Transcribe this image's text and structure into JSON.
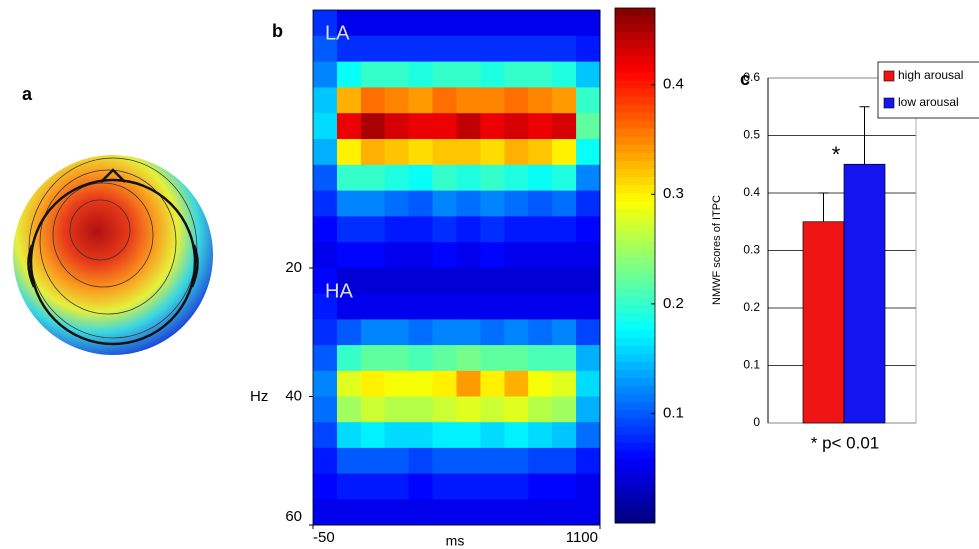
{
  "chart_data": [
    {
      "type": "topomap",
      "panel": "a"
    },
    {
      "type": "heatmap",
      "panel": "b",
      "xlabel": "ms",
      "ylabel": "Hz",
      "xlim": [
        -50,
        1100
      ],
      "xticks": [
        -50,
        1100
      ],
      "ylim": [
        20,
        60
      ],
      "yticks": [
        20,
        40,
        60
      ],
      "clim": [
        0,
        0.47
      ],
      "cticks": [
        0.1,
        0.2,
        0.3,
        0.4
      ],
      "x": [
        -2,
        94,
        190,
        285,
        381,
        477,
        573,
        669,
        765,
        860,
        956,
        1052
      ],
      "y": [
        22,
        26,
        30,
        34,
        38,
        42,
        46,
        50,
        54,
        58
      ],
      "panels": [
        {
          "name": "LA",
          "values": [
            [
              0.08,
              0.05,
              0.05,
              0.05,
              0.05,
              0.05,
              0.05,
              0.05,
              0.05,
              0.05,
              0.05,
              0.05
            ],
            [
              0.1,
              0.08,
              0.08,
              0.08,
              0.08,
              0.08,
              0.08,
              0.08,
              0.08,
              0.08,
              0.08,
              0.07
            ],
            [
              0.12,
              0.18,
              0.2,
              0.2,
              0.19,
              0.2,
              0.2,
              0.19,
              0.2,
              0.2,
              0.19,
              0.15
            ],
            [
              0.15,
              0.33,
              0.36,
              0.35,
              0.34,
              0.36,
              0.35,
              0.35,
              0.36,
              0.35,
              0.34,
              0.2
            ],
            [
              0.16,
              0.42,
              0.45,
              0.43,
              0.42,
              0.42,
              0.44,
              0.42,
              0.43,
              0.42,
              0.43,
              0.22
            ],
            [
              0.14,
              0.3,
              0.33,
              0.32,
              0.31,
              0.32,
              0.32,
              0.31,
              0.33,
              0.32,
              0.3,
              0.18
            ],
            [
              0.1,
              0.2,
              0.2,
              0.19,
              0.18,
              0.2,
              0.19,
              0.2,
              0.19,
              0.18,
              0.19,
              0.12
            ],
            [
              0.08,
              0.12,
              0.12,
              0.11,
              0.1,
              0.12,
              0.11,
              0.12,
              0.11,
              0.1,
              0.11,
              0.08
            ],
            [
              0.06,
              0.08,
              0.08,
              0.07,
              0.07,
              0.08,
              0.07,
              0.08,
              0.07,
              0.07,
              0.07,
              0.06
            ],
            [
              0.05,
              0.06,
              0.06,
              0.05,
              0.05,
              0.06,
              0.05,
              0.06,
              0.05,
              0.05,
              0.05,
              0.05
            ]
          ]
        },
        {
          "name": "HA",
          "values": [
            [
              0.06,
              0.04,
              0.04,
              0.04,
              0.04,
              0.04,
              0.04,
              0.04,
              0.04,
              0.04,
              0.04,
              0.04
            ],
            [
              0.07,
              0.05,
              0.05,
              0.05,
              0.05,
              0.05,
              0.05,
              0.05,
              0.05,
              0.05,
              0.05,
              0.05
            ],
            [
              0.08,
              0.1,
              0.12,
              0.12,
              0.11,
              0.12,
              0.12,
              0.11,
              0.12,
              0.11,
              0.12,
              0.09
            ],
            [
              0.1,
              0.2,
              0.22,
              0.22,
              0.21,
              0.22,
              0.23,
              0.22,
              0.22,
              0.21,
              0.21,
              0.14
            ],
            [
              0.12,
              0.28,
              0.3,
              0.29,
              0.29,
              0.3,
              0.34,
              0.3,
              0.33,
              0.29,
              0.28,
              0.16
            ],
            [
              0.11,
              0.25,
              0.27,
              0.26,
              0.26,
              0.27,
              0.28,
              0.27,
              0.28,
              0.26,
              0.25,
              0.14
            ],
            [
              0.09,
              0.16,
              0.17,
              0.16,
              0.16,
              0.17,
              0.17,
              0.16,
              0.17,
              0.16,
              0.15,
              0.11
            ],
            [
              0.07,
              0.1,
              0.1,
              0.1,
              0.09,
              0.1,
              0.1,
              0.1,
              0.1,
              0.09,
              0.09,
              0.07
            ],
            [
              0.06,
              0.07,
              0.07,
              0.07,
              0.06,
              0.07,
              0.07,
              0.07,
              0.07,
              0.06,
              0.06,
              0.05
            ],
            [
              0.05,
              0.05,
              0.05,
              0.05,
              0.05,
              0.05,
              0.05,
              0.05,
              0.05,
              0.05,
              0.05,
              0.05
            ]
          ]
        }
      ]
    },
    {
      "type": "bar",
      "panel": "c",
      "ylabel": "NMWF scores of ITPC",
      "categories": [
        null
      ],
      "ylim": [
        0,
        0.6
      ],
      "yticks": [
        0,
        0.1,
        0.2,
        0.3,
        0.4,
        0.5,
        0.6
      ],
      "grid": true,
      "series": [
        {
          "name": "high arousal",
          "color": "#f01414",
          "values": [
            0.35
          ],
          "errors": [
            0.05
          ]
        },
        {
          "name": "low arousal",
          "color": "#1414f0",
          "values": [
            0.45
          ],
          "errors": [
            0.1
          ]
        }
      ],
      "annotations": [
        "*",
        "* p< 0.01"
      ]
    }
  ]
}
